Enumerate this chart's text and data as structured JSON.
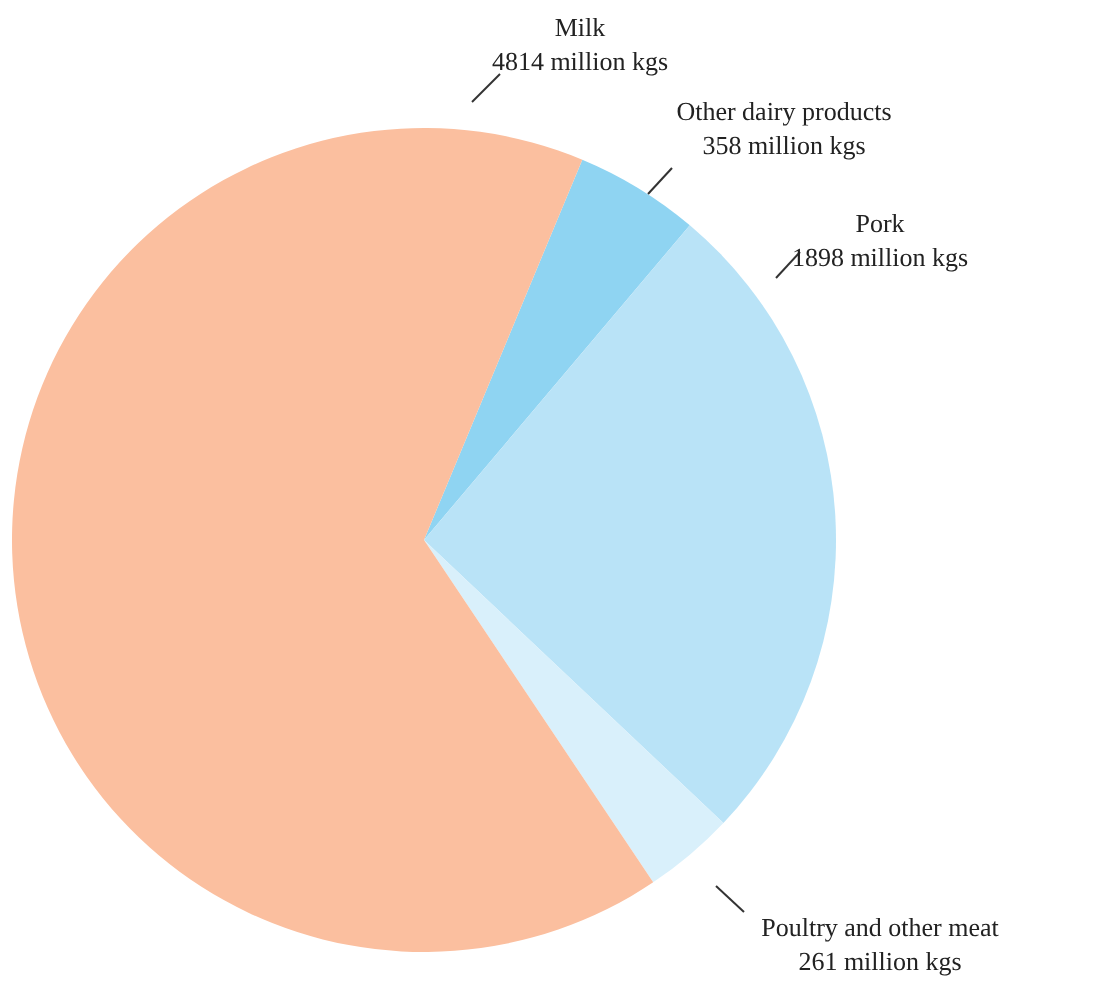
{
  "chart_data": {
    "type": "pie",
    "categories": [
      "Other dairy products",
      "Pork",
      "Poultry and other meat",
      "Milk"
    ],
    "values": [
      358,
      1898,
      261,
      4814
    ],
    "colors": [
      "#8fd4f2",
      "#b9e3f7",
      "#d9f0fb",
      "#fbbf9f"
    ],
    "value_labels": [
      "358 million kgs",
      "1898 million kgs",
      "261 million kgs",
      "4814 million kgs"
    ]
  }
}
